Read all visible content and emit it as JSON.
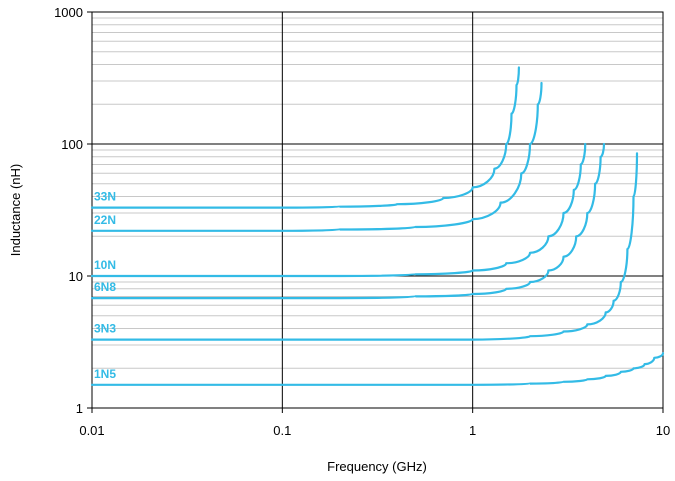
{
  "chart_data": {
    "type": "line",
    "title": "",
    "xlabel": "Frequency (GHz)",
    "ylabel": "Inductance (nH)",
    "x_scale": "log",
    "y_scale": "log",
    "xlim": [
      0.01,
      10
    ],
    "ylim": [
      1,
      1000
    ],
    "x_ticks": [
      {
        "value": 0.01,
        "label": "0.01"
      },
      {
        "value": 0.1,
        "label": "0.1"
      },
      {
        "value": 1,
        "label": "1"
      },
      {
        "value": 10,
        "label": "10"
      }
    ],
    "y_ticks": [
      {
        "value": 1,
        "label": "1"
      },
      {
        "value": 10,
        "label": "10"
      },
      {
        "value": 100,
        "label": "100"
      },
      {
        "value": 1000,
        "label": "1000"
      }
    ],
    "grid": "major and minor",
    "line_color": "#33bbe6",
    "series": [
      {
        "name": "33N",
        "x": [
          0.01,
          0.1,
          0.2,
          0.4,
          0.7,
          1.0,
          1.3,
          1.5,
          1.6,
          1.7,
          1.75
        ],
        "y": [
          33,
          33,
          33.5,
          35,
          39,
          47,
          65,
          100,
          170,
          280,
          380
        ]
      },
      {
        "name": "22N",
        "x": [
          0.01,
          0.1,
          0.2,
          0.5,
          1.0,
          1.4,
          1.8,
          2.0,
          2.2,
          2.3
        ],
        "y": [
          22,
          22,
          22.5,
          23.5,
          27,
          36,
          60,
          100,
          200,
          290
        ]
      },
      {
        "name": "10N",
        "x": [
          0.01,
          0.2,
          0.5,
          1.0,
          1.5,
          2.0,
          2.5,
          3.0,
          3.4,
          3.7,
          3.9
        ],
        "y": [
          10,
          10,
          10.3,
          11,
          12.5,
          15,
          20,
          30,
          45,
          70,
          100
        ]
      },
      {
        "name": "6N8",
        "x": [
          0.01,
          0.2,
          0.5,
          1.0,
          1.5,
          2.0,
          2.5,
          3.0,
          3.5,
          4.0,
          4.4,
          4.7,
          4.9
        ],
        "y": [
          6.8,
          6.8,
          7.0,
          7.3,
          8.0,
          9.0,
          11,
          14,
          20,
          30,
          50,
          80,
          100
        ]
      },
      {
        "name": "3N3",
        "x": [
          0.01,
          1.0,
          2.0,
          3.0,
          4.0,
          5.0,
          5.5,
          6.0,
          6.5,
          7.0,
          7.3
        ],
        "y": [
          3.3,
          3.3,
          3.5,
          3.8,
          4.3,
          5.3,
          6.5,
          9.0,
          16,
          40,
          85
        ]
      },
      {
        "name": "1N5",
        "x": [
          0.01,
          1.0,
          2.0,
          3.0,
          4.0,
          5.0,
          6.0,
          7.0,
          8.0,
          9.0,
          10.0
        ],
        "y": [
          1.5,
          1.5,
          1.53,
          1.58,
          1.65,
          1.75,
          1.88,
          2.0,
          2.15,
          2.4,
          2.6
        ]
      }
    ]
  }
}
